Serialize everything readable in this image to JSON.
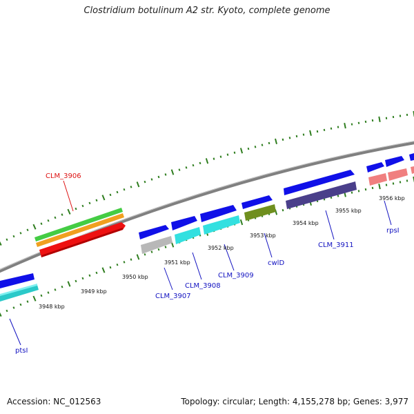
{
  "title": "Clostridium botulinum A2 str. Kyoto, complete genome",
  "accession": "Accession: NC_012563",
  "summary": "Topology: circular; Length: 4,155,278 bp; Genes: 3,977",
  "colors": {
    "backbone": "#808080",
    "tick": "#2e7d1e",
    "blue": "#1010e8",
    "cds_cyan": "#33e0e0",
    "cds_grey": "#b8b8b8",
    "cds_olive": "#6f8f1e",
    "cds_navy": "#4a3f8a",
    "cds_pink": "#f07f7f",
    "green": "#44cc44",
    "orange": "#f0a020",
    "red": "#ee1111",
    "label_blue": "#1010c0",
    "label_red": "#dd1111"
  },
  "scale_labels": [
    "3948 kbp",
    "3949 kbp",
    "3950 kbp",
    "3951 kbp",
    "3952 kbp",
    "3953 kbp",
    "3954 kbp",
    "3955 kbp",
    "3956 kbp"
  ],
  "gene_labels": [
    {
      "text": "ptsI",
      "color": "label_blue"
    },
    {
      "text": "CLM_3906",
      "color": "label_red"
    },
    {
      "text": "CLM_3907",
      "color": "label_blue"
    },
    {
      "text": "CLM_3908",
      "color": "label_blue"
    },
    {
      "text": "CLM_3909",
      "color": "label_blue"
    },
    {
      "text": "cwlD",
      "color": "label_blue"
    },
    {
      "text": "CLM_3911",
      "color": "label_blue"
    },
    {
      "text": "rpsI",
      "color": "label_blue"
    }
  ]
}
